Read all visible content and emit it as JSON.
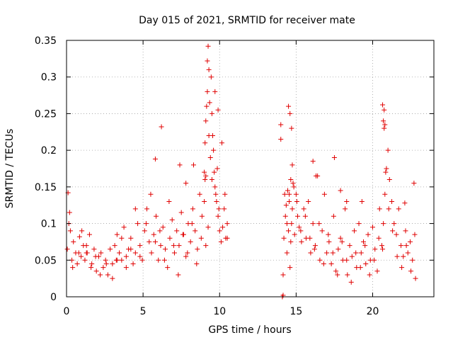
{
  "chart_data": {
    "type": "scatter",
    "title": "Day 015 of 2021, SRMTID for receiver mate",
    "xlabel": "GPS time / hours",
    "ylabel": "SRMTID / TECUs",
    "xlim": [
      0,
      24
    ],
    "ylim": [
      0,
      0.35
    ],
    "xticks": [
      0,
      5,
      10,
      15,
      20
    ],
    "xtick_labels": [
      "0",
      "5",
      "10",
      "15",
      "20"
    ],
    "yticks": [
      0,
      0.05,
      0.1,
      0.15,
      0.2,
      0.25,
      0.3,
      0.35
    ],
    "ytick_labels": [
      "0",
      "0.05",
      "0.1",
      "0.15",
      "0.2",
      "0.25",
      "0.3",
      "0.35"
    ],
    "grid": true,
    "marker": "plus",
    "color": "#e00000",
    "series": [
      {
        "name": "SRMTID",
        "x": [
          0.05,
          0.1,
          0.2,
          0.25,
          0.35,
          0.45,
          0.6,
          0.7,
          0.85,
          0.95,
          1.1,
          1.2,
          1.35,
          1.5,
          1.65,
          1.8,
          1.95,
          2.1,
          2.25,
          2.4,
          2.55,
          2.7,
          2.85,
          3.0,
          3.15,
          3.3,
          3.45,
          3.6,
          3.75,
          3.9,
          4.05,
          4.2,
          4.35,
          4.5,
          4.65,
          4.8,
          4.95,
          5.1,
          5.25,
          5.4,
          5.55,
          5.7,
          5.85,
          6.0,
          6.15,
          6.3,
          6.45,
          6.6,
          6.75,
          6.9,
          7.05,
          7.2,
          7.35,
          7.5,
          7.65,
          7.8,
          7.95,
          8.1,
          8.25,
          8.4,
          8.55,
          8.7,
          8.85,
          9.0,
          9.05,
          9.1,
          9.15,
          9.2,
          9.3,
          9.4,
          9.5,
          9.6,
          9.7,
          9.8,
          9.9,
          10.0,
          10.1,
          10.2,
          10.3,
          10.4,
          10.5,
          0.15,
          0.4,
          0.8,
          1.0,
          1.3,
          1.6,
          1.9,
          2.2,
          2.6,
          3.0,
          3.3,
          3.6,
          3.9,
          4.2,
          4.5,
          4.8,
          5.2,
          5.5,
          5.8,
          6.1,
          6.4,
          6.7,
          7.0,
          7.3,
          7.6,
          7.9,
          8.2,
          8.5,
          8.8,
          9.0,
          9.1,
          9.25,
          9.35,
          9.45,
          9.55,
          9.65,
          9.75,
          9.85,
          9.95,
          10.15,
          10.35,
          10.5,
          1.3,
          3.25,
          5.8,
          6.2,
          7.4,
          7.8,
          8.3,
          9.05,
          9.1,
          9.2,
          9.25,
          9.3,
          9.5,
          9.7,
          9.9,
          14.0,
          14.0,
          14.1,
          14.15,
          14.2,
          14.25,
          14.3,
          14.35,
          14.4,
          14.45,
          14.5,
          14.55,
          14.6,
          14.65,
          14.7,
          14.75,
          14.8,
          14.9,
          15.0,
          15.1,
          15.2,
          15.35,
          15.5,
          15.65,
          15.8,
          15.95,
          16.1,
          16.25,
          16.4,
          16.55,
          16.7,
          16.85,
          17.0,
          17.15,
          17.3,
          17.45,
          17.6,
          17.75,
          17.9,
          18.05,
          18.2,
          18.35,
          18.5,
          18.65,
          18.8,
          18.95,
          19.1,
          19.25,
          19.4,
          19.55,
          19.7,
          19.85,
          20.0,
          20.15,
          20.3,
          20.45,
          20.6,
          20.7,
          20.8,
          20.9,
          21.0,
          21.1,
          21.25,
          21.4,
          21.55,
          21.7,
          21.85,
          22.0,
          22.15,
          22.3,
          22.45,
          22.6,
          22.75,
          14.15,
          14.4,
          14.55,
          14.65,
          14.75,
          14.85,
          15.05,
          15.3,
          15.6,
          15.9,
          16.2,
          16.5,
          16.8,
          17.1,
          17.4,
          17.7,
          18.0,
          18.3,
          18.6,
          18.9,
          19.2,
          19.5,
          19.8,
          20.1,
          20.4,
          20.65,
          20.75,
          20.85,
          21.05,
          21.3,
          21.6,
          21.9,
          22.2,
          22.5,
          22.8,
          14.5,
          14.6,
          14.7,
          16.1,
          16.3,
          17.5,
          17.9,
          18.3,
          19.3,
          20.65,
          20.7,
          20.75,
          20.8,
          22.1,
          22.7
        ],
        "values": [
          0.065,
          0.142,
          0.115,
          0.09,
          0.05,
          0.075,
          0.06,
          0.045,
          0.082,
          0.055,
          0.07,
          0.05,
          0.06,
          0.085,
          0.045,
          0.065,
          0.035,
          0.055,
          0.06,
          0.04,
          0.05,
          0.03,
          0.065,
          0.045,
          0.07,
          0.085,
          0.06,
          0.05,
          0.095,
          0.055,
          0.065,
          0.08,
          0.045,
          0.06,
          0.1,
          0.07,
          0.05,
          0.09,
          0.12,
          0.075,
          0.06,
          0.085,
          0.11,
          0.05,
          0.07,
          0.095,
          0.065,
          0.04,
          0.08,
          0.105,
          0.06,
          0.09,
          0.07,
          0.115,
          0.085,
          0.055,
          0.1,
          0.075,
          0.12,
          0.09,
          0.065,
          0.14,
          0.11,
          0.17,
          0.21,
          0.24,
          0.26,
          0.28,
          0.22,
          0.19,
          0.16,
          0.2,
          0.15,
          0.13,
          0.11,
          0.09,
          0.075,
          0.095,
          0.12,
          0.08,
          0.1,
          0.1,
          0.04,
          0.06,
          0.09,
          0.07,
          0.04,
          0.055,
          0.03,
          0.045,
          0.025,
          0.05,
          0.08,
          0.04,
          0.065,
          0.12,
          0.055,
          0.1,
          0.14,
          0.075,
          0.09,
          0.05,
          0.13,
          0.07,
          0.03,
          0.085,
          0.06,
          0.1,
          0.045,
          0.08,
          0.13,
          0.07,
          0.095,
          0.265,
          0.3,
          0.22,
          0.17,
          0.14,
          0.175,
          0.12,
          0.21,
          0.14,
          0.08,
          0.06,
          0.05,
          0.188,
          0.232,
          0.18,
          0.155,
          0.18,
          0.16,
          0.165,
          0.322,
          0.342,
          0.31,
          0.25,
          0.28,
          0.255,
          0.235,
          0.215,
          0.0,
          0.002,
          0.08,
          0.14,
          0.11,
          0.125,
          0.06,
          0.145,
          0.09,
          0.13,
          0.04,
          0.16,
          0.1,
          0.12,
          0.155,
          0.085,
          0.14,
          0.11,
          0.095,
          0.075,
          0.12,
          0.08,
          0.13,
          0.06,
          0.1,
          0.07,
          0.165,
          0.05,
          0.09,
          0.14,
          0.06,
          0.075,
          0.045,
          0.11,
          0.035,
          0.065,
          0.08,
          0.05,
          0.12,
          0.03,
          0.07,
          0.055,
          0.09,
          0.04,
          0.1,
          0.06,
          0.075,
          0.045,
          0.085,
          0.05,
          0.095,
          0.065,
          0.035,
          0.12,
          0.07,
          0.1,
          0.14,
          0.175,
          0.2,
          0.16,
          0.13,
          0.1,
          0.085,
          0.12,
          0.07,
          0.055,
          0.09,
          0.06,
          0.075,
          0.05,
          0.085,
          0.03,
          0.1,
          0.14,
          0.075,
          0.18,
          0.15,
          0.13,
          0.09,
          0.11,
          0.08,
          0.065,
          0.1,
          0.045,
          0.085,
          0.06,
          0.03,
          0.075,
          0.05,
          0.02,
          0.06,
          0.04,
          0.07,
          0.03,
          0.05,
          0.08,
          0.065,
          0.23,
          0.17,
          0.12,
          0.09,
          0.055,
          0.04,
          0.07,
          0.035,
          0.025,
          0.26,
          0.25,
          0.23,
          0.185,
          0.165,
          0.19,
          0.145,
          0.13,
          0.13,
          0.262,
          0.24,
          0.255,
          0.235,
          0.128,
          0.155
        ]
      }
    ]
  }
}
